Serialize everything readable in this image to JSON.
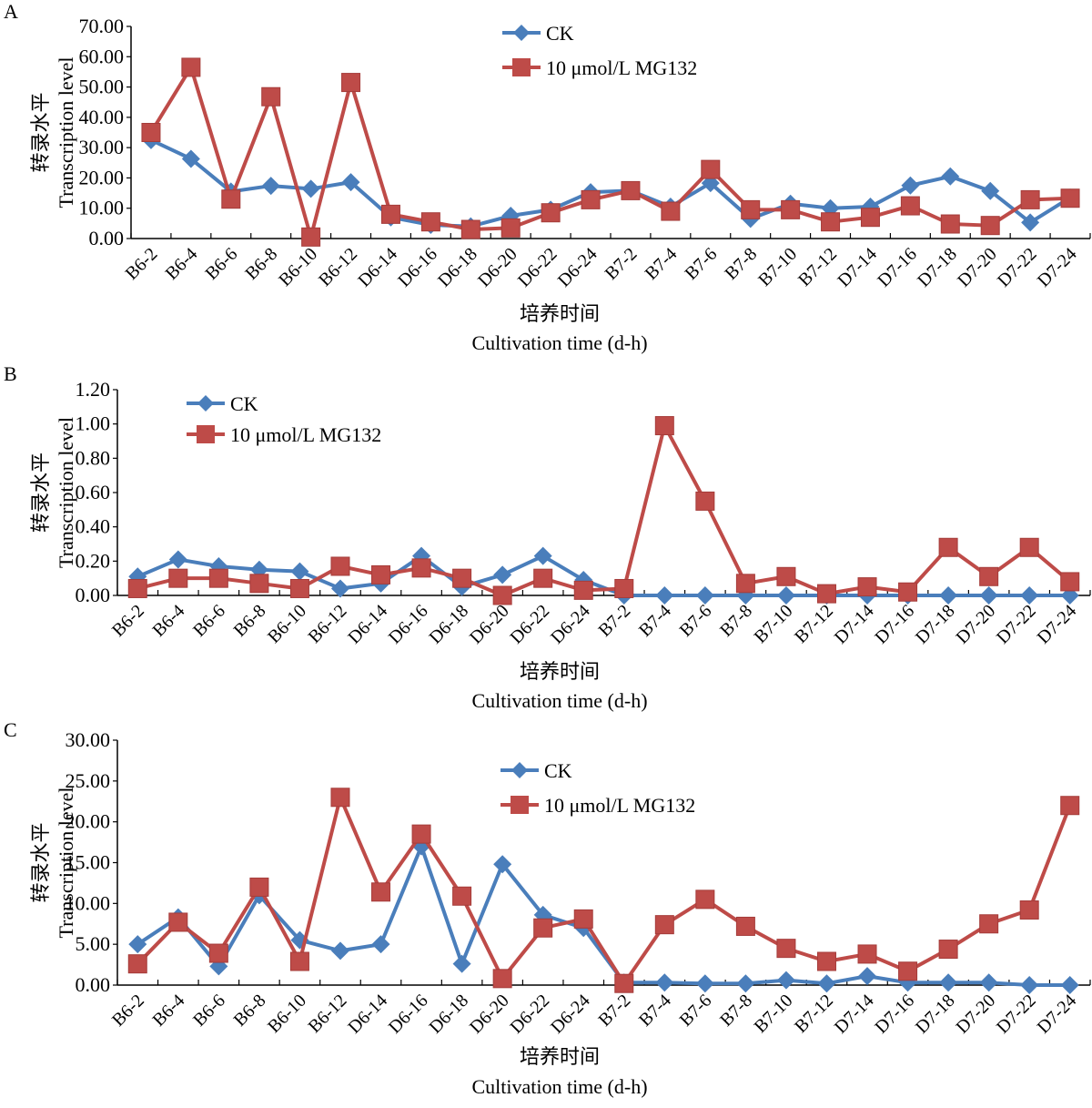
{
  "chart_data": [
    {
      "panel": "A",
      "type": "line",
      "title": "",
      "xlabel_cn": "培养时间",
      "xlabel": "Cultivation time (d-h)",
      "ylabel_cn": "转录水平",
      "ylabel": "Transcription level",
      "ylim": [
        0,
        70
      ],
      "yticks": [
        "0.00",
        "10.00",
        "20.00",
        "30.00",
        "40.00",
        "50.00",
        "60.00",
        "70.00"
      ],
      "ytick_values": [
        0,
        10,
        20,
        30,
        40,
        50,
        60,
        70
      ],
      "legend_position": "top-center",
      "categories": [
        "B6-2",
        "B6-4",
        "B6-6",
        "B6-8",
        "B6-10",
        "B6-12",
        "D6-14",
        "D6-16",
        "D6-18",
        "D6-20",
        "D6-22",
        "D6-24",
        "B7-2",
        "B7-4",
        "B7-6",
        "B7-8",
        "B7-10",
        "B7-12",
        "D7-14",
        "D7-16",
        "D7-18",
        "D7-20",
        "D7-22",
        "D7-24"
      ],
      "series": [
        {
          "name": "CK",
          "color": "#4a7ebb",
          "marker": "diamond",
          "values": [
            32.5,
            26.3,
            15.5,
            17.4,
            16.4,
            18.6,
            7.0,
            4.5,
            4.0,
            7.5,
            9.5,
            15.3,
            15.8,
            10.5,
            18.3,
            6.5,
            11.5,
            10.0,
            10.5,
            17.5,
            20.5,
            15.7,
            5.3,
            13.5
          ]
        },
        {
          "name": "10 μmol/L MG132",
          "color": "#be4b48",
          "marker": "square",
          "values": [
            35.0,
            56.5,
            13.0,
            46.8,
            0.5,
            51.5,
            8.0,
            5.5,
            3.0,
            3.5,
            8.5,
            12.8,
            15.8,
            9.0,
            22.8,
            9.5,
            9.5,
            5.5,
            7.0,
            10.8,
            4.8,
            4.3,
            12.8,
            13.3
          ]
        }
      ]
    },
    {
      "panel": "B",
      "type": "line",
      "title": "",
      "xlabel_cn": "培养时间",
      "xlabel": "Cultivation time (d-h)",
      "ylabel_cn": "转录水平",
      "ylabel": "Transcription level",
      "ylim": [
        0,
        1.2
      ],
      "yticks": [
        "0.00",
        "0.20",
        "0.40",
        "0.60",
        "0.80",
        "1.00",
        "1.20"
      ],
      "ytick_values": [
        0,
        0.2,
        0.4,
        0.6,
        0.8,
        1.0,
        1.2
      ],
      "legend_position": "top-left",
      "categories": [
        "B6-2",
        "B6-4",
        "B6-6",
        "B6-8",
        "B6-10",
        "B6-12",
        "D6-14",
        "D6-16",
        "D6-18",
        "D6-20",
        "D6-22",
        "D6-24",
        "B7-2",
        "B7-4",
        "B7-6",
        "B7-8",
        "B7-10",
        "B7-12",
        "D7-14",
        "D7-16",
        "D7-18",
        "D7-20",
        "D7-22",
        "D7-24"
      ],
      "series": [
        {
          "name": "CK",
          "color": "#4a7ebb",
          "marker": "diamond",
          "values": [
            0.11,
            0.21,
            0.17,
            0.15,
            0.14,
            0.04,
            0.07,
            0.23,
            0.05,
            0.12,
            0.23,
            0.09,
            0.0,
            0.0,
            0.0,
            0.0,
            0.0,
            0.0,
            0.0,
            0.0,
            0.0,
            0.0,
            0.0,
            0.0
          ]
        },
        {
          "name": "10 μmol/L MG132",
          "color": "#be4b48",
          "marker": "square",
          "values": [
            0.04,
            0.1,
            0.1,
            0.07,
            0.04,
            0.17,
            0.12,
            0.16,
            0.1,
            0.0,
            0.1,
            0.03,
            0.04,
            0.99,
            0.55,
            0.07,
            0.11,
            0.01,
            0.05,
            0.02,
            0.28,
            0.11,
            0.28,
            0.08
          ]
        }
      ]
    },
    {
      "panel": "C",
      "type": "line",
      "title": "",
      "xlabel_cn": "培养时间",
      "xlabel": "Cultivation time (d-h)",
      "ylabel_cn": "转录水平",
      "ylabel": "Transcription level",
      "ylim": [
        0,
        30
      ],
      "yticks": [
        "0.00",
        "5.00",
        "10.00",
        "15.00",
        "20.00",
        "25.00",
        "30.00"
      ],
      "ytick_values": [
        0,
        5,
        10,
        15,
        20,
        25,
        30
      ],
      "legend_position": "top-center",
      "categories": [
        "B6-2",
        "B6-4",
        "B6-6",
        "B6-8",
        "B6-10",
        "B6-12",
        "D6-14",
        "D6-16",
        "D6-18",
        "D6-20",
        "D6-22",
        "D6-24",
        "B7-2",
        "B7-4",
        "B7-6",
        "B7-8",
        "B7-10",
        "B7-12",
        "D7-14",
        "D7-16",
        "D7-18",
        "D7-20",
        "D7-22",
        "D7-24"
      ],
      "series": [
        {
          "name": "CK",
          "color": "#4a7ebb",
          "marker": "diamond",
          "values": [
            5.0,
            8.3,
            2.3,
            11.0,
            5.5,
            4.2,
            5.0,
            17.0,
            2.6,
            14.8,
            8.6,
            7.0,
            0.3,
            0.3,
            0.2,
            0.2,
            0.6,
            0.2,
            1.1,
            0.3,
            0.3,
            0.3,
            0.0,
            0.0
          ]
        },
        {
          "name": "10 μmol/L MG132",
          "color": "#be4b48",
          "marker": "square",
          "values": [
            2.6,
            7.7,
            3.9,
            12.0,
            2.9,
            23.0,
            11.4,
            18.5,
            10.9,
            0.8,
            7.0,
            8.1,
            0.2,
            7.4,
            10.5,
            7.2,
            4.5,
            2.9,
            3.8,
            1.7,
            4.4,
            7.5,
            9.2,
            22.0
          ]
        }
      ]
    }
  ]
}
